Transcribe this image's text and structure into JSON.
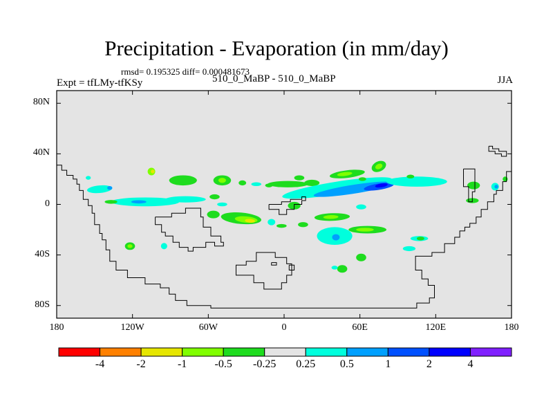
{
  "header": {
    "title": "Precipitation - Evaporation (in mm/day)",
    "stats": "rmsd= 0.195325 diff= 0.000481673",
    "expt_label": "Expt = tfLMy-tfKSy",
    "diff_label": "510_0_MaBP - 510_0_MaBP",
    "season": "JJA"
  },
  "chart_data": {
    "type": "heatmap",
    "title": "Precipitation - Evaporation (in mm/day)",
    "xlabel": "",
    "ylabel": "",
    "xlim": [
      -180,
      180
    ],
    "ylim": [
      -90,
      90
    ],
    "x_ticks": [
      {
        "value": -180,
        "label": "180"
      },
      {
        "value": -120,
        "label": "120W"
      },
      {
        "value": -60,
        "label": "60W"
      },
      {
        "value": 0,
        "label": "0"
      },
      {
        "value": 60,
        "label": "60E"
      },
      {
        "value": 120,
        "label": "120E"
      },
      {
        "value": 180,
        "label": "180"
      }
    ],
    "y_ticks": [
      {
        "value": 80,
        "label": "80N"
      },
      {
        "value": 40,
        "label": "40N"
      },
      {
        "value": 0,
        "label": "0"
      },
      {
        "value": -40,
        "label": "40S"
      },
      {
        "value": -80,
        "label": "80S"
      }
    ],
    "background_color": "#e4e4e4",
    "colorbar": {
      "colors": [
        "#ff0000",
        "#ff8000",
        "#e6e600",
        "#80ff00",
        "#1edc1e",
        "#e4e4e4",
        "#00ffdd",
        "#00a0ff",
        "#0050ff",
        "#0000ff",
        "#8020ff"
      ],
      "labels": [
        "-4",
        "-2",
        "-1",
        "-0.5",
        "-0.25",
        "0.25",
        "0.5",
        "1",
        "2",
        "4"
      ]
    },
    "anomaly_regions": [
      {
        "lon": -146,
        "lat": 12,
        "rlon": 10,
        "rlat": 3,
        "rot": -5,
        "level": "0.25"
      },
      {
        "lon": -138,
        "lat": 13,
        "rlon": 2,
        "rlat": 1.5,
        "rot": 0,
        "level": "0.5"
      },
      {
        "lon": -110,
        "lat": 2,
        "rlon": 27,
        "rlat": 3.5,
        "rot": 0,
        "level": "0.25"
      },
      {
        "lon": -115,
        "lat": 2,
        "rlon": 6,
        "rlat": 1.3,
        "rot": 0,
        "level": "0.5"
      },
      {
        "lon": -78,
        "lat": 4,
        "rlon": 16,
        "rlat": 2.5,
        "rot": 0,
        "level": "0.25"
      },
      {
        "lon": -155,
        "lat": 21,
        "rlon": 2,
        "rlat": 1.5,
        "rot": 0,
        "level": "0.25"
      },
      {
        "lon": -105,
        "lat": 26,
        "rlon": 3,
        "rlat": 3,
        "rot": 0,
        "level": "-0.5"
      },
      {
        "lon": -104,
        "lat": 26,
        "rlon": 1.5,
        "rlat": 1.5,
        "rot": 0,
        "level": "-1"
      },
      {
        "lon": -137,
        "lat": 2,
        "rlon": 5,
        "rlat": 1.5,
        "rot": 0,
        "level": "-0.25"
      },
      {
        "lon": -80,
        "lat": 19,
        "rlon": 11,
        "rlat": 4,
        "rot": 0,
        "level": "-0.25"
      },
      {
        "lon": -55,
        "lat": 6,
        "rlon": 4,
        "rlat": 2,
        "rot": 0,
        "level": "-0.25"
      },
      {
        "lon": -49,
        "lat": 19,
        "rlon": 7,
        "rlat": 4,
        "rot": 0,
        "level": "-0.25"
      },
      {
        "lon": -49,
        "lat": 19,
        "rlon": 3,
        "rlat": 2,
        "rot": 0,
        "level": "-0.5"
      },
      {
        "lon": -33,
        "lat": 17,
        "rlon": 3,
        "rlat": 2,
        "rot": 0,
        "level": "-0.25"
      },
      {
        "lon": -22,
        "lat": 16,
        "rlon": 4,
        "rlat": 1.5,
        "rot": 0,
        "level": "0.25"
      },
      {
        "lon": -12,
        "lat": 15,
        "rlon": 3,
        "rlat": 1.5,
        "rot": 0,
        "level": "-0.25"
      },
      {
        "lon": -34,
        "lat": -11,
        "rlon": 16,
        "rlat": 4.5,
        "rot": 5,
        "level": "-0.25"
      },
      {
        "lon": -30,
        "lat": -12,
        "rlon": 9,
        "rlat": 2.5,
        "rot": 5,
        "level": "-0.5"
      },
      {
        "lon": -27,
        "lat": -13,
        "rlon": 4,
        "rlat": 1.5,
        "rot": 5,
        "level": "-1"
      },
      {
        "lon": -56,
        "lat": -8,
        "rlon": 5,
        "rlat": 3,
        "rot": 0,
        "level": "-0.25"
      },
      {
        "lon": -49,
        "lat": 0,
        "rlon": 4,
        "rlat": 1.5,
        "rot": 0,
        "level": "0.25"
      },
      {
        "lon": -10,
        "lat": -14,
        "rlon": 3,
        "rlat": 2.5,
        "rot": 0,
        "level": "0.25"
      },
      {
        "lon": -2,
        "lat": -17,
        "rlon": 4,
        "rlat": 1.5,
        "rot": 0,
        "level": "-0.25"
      },
      {
        "lon": 8,
        "lat": -1,
        "rlon": 5,
        "rlat": 3,
        "rot": 0,
        "level": "-0.25"
      },
      {
        "lon": 3,
        "lat": 16,
        "rlon": 16,
        "rlat": 2.5,
        "rot": 0,
        "level": "-0.25"
      },
      {
        "lon": 22,
        "lat": 17,
        "rlon": 6,
        "rlat": 2.5,
        "rot": 0,
        "level": "-0.25"
      },
      {
        "lon": 42,
        "lat": 13,
        "rlon": 44,
        "rlat": 5,
        "rot": -9,
        "level": "0.25"
      },
      {
        "lon": 55,
        "lat": 12,
        "rlon": 32,
        "rlat": 3.5,
        "rot": -9,
        "level": "0.5"
      },
      {
        "lon": 75,
        "lat": 14,
        "rlon": 12,
        "rlat": 2.5,
        "rot": -9,
        "level": "1"
      },
      {
        "lon": 77,
        "lat": 15,
        "rlon": 5,
        "rlat": 1.5,
        "rot": -9,
        "level": "2"
      },
      {
        "lon": 50,
        "lat": 24,
        "rlon": 14,
        "rlat": 3,
        "rot": -7,
        "level": "-0.25"
      },
      {
        "lon": 48,
        "lat": 24,
        "rlon": 6,
        "rlat": 1.5,
        "rot": -7,
        "level": "-0.5"
      },
      {
        "lon": 75,
        "lat": 30,
        "rlon": 6,
        "rlat": 4,
        "rot": -25,
        "level": "-0.25"
      },
      {
        "lon": 75,
        "lat": 30,
        "rlon": 3,
        "rlat": 2,
        "rot": -25,
        "level": "-0.5"
      },
      {
        "lon": 62,
        "lat": 20,
        "rlon": 3,
        "rlat": 1.5,
        "rot": 0,
        "level": "-0.25"
      },
      {
        "lon": 12,
        "lat": 21,
        "rlon": 4,
        "rlat": 2,
        "rot": 0,
        "level": "-0.25"
      },
      {
        "lon": 38,
        "lat": -10,
        "rlon": 14,
        "rlat": 3,
        "rot": -2,
        "level": "-0.25"
      },
      {
        "lon": 37,
        "lat": -10,
        "rlon": 6,
        "rlat": 1.5,
        "rot": -2,
        "level": "-0.5"
      },
      {
        "lon": 15,
        "lat": -16,
        "rlon": 4,
        "rlat": 2,
        "rot": 0,
        "level": "-0.25"
      },
      {
        "lon": 66,
        "lat": -20,
        "rlon": 15,
        "rlat": 3,
        "rot": 0,
        "level": "-0.25"
      },
      {
        "lon": 64,
        "lat": -20,
        "rlon": 7,
        "rlat": 1.5,
        "rot": 0,
        "level": "-0.5"
      },
      {
        "lon": 40,
        "lat": -25,
        "rlon": 14,
        "rlat": 7,
        "rot": 0,
        "level": "0.25"
      },
      {
        "lon": 41,
        "lat": -26,
        "rlon": 3,
        "rlat": 2.5,
        "rot": 0,
        "level": "0.5"
      },
      {
        "lon": 61,
        "lat": -2,
        "rlon": 4,
        "rlat": 2,
        "rot": 0,
        "level": "0.25"
      },
      {
        "lon": 105,
        "lat": 18,
        "rlon": 24,
        "rlat": 4,
        "rot": 0,
        "level": "0.25"
      },
      {
        "lon": 99,
        "lat": -35,
        "rlon": 5,
        "rlat": 2,
        "rot": 0,
        "level": "0.25"
      },
      {
        "lon": 107,
        "lat": -27,
        "rlon": 7,
        "rlat": 2,
        "rot": 0,
        "level": "0.25"
      },
      {
        "lon": 108,
        "lat": -27,
        "rlon": 3,
        "rlat": 1.5,
        "rot": 0,
        "level": "-0.25"
      },
      {
        "lon": 100,
        "lat": 22,
        "rlon": 3,
        "rlat": 1.5,
        "rot": 0,
        "level": "-0.25"
      },
      {
        "lon": 61,
        "lat": -42,
        "rlon": 4,
        "rlat": 3,
        "rot": 0,
        "level": "-0.25"
      },
      {
        "lon": 46,
        "lat": -51,
        "rlon": 4,
        "rlat": 3,
        "rot": 0,
        "level": "-0.25"
      },
      {
        "lon": 40,
        "lat": -50,
        "rlon": 2.5,
        "rlat": 1.5,
        "rot": 0,
        "level": "0.25"
      },
      {
        "lon": -122,
        "lat": -33,
        "rlon": 4,
        "rlat": 3,
        "rot": 0,
        "level": "-0.25"
      },
      {
        "lon": -122,
        "lat": -33,
        "rlon": 2,
        "rlat": 1.5,
        "rot": 0,
        "level": "-0.5"
      },
      {
        "lon": -95,
        "lat": -33,
        "rlon": 2.5,
        "rlat": 2.5,
        "rot": 0,
        "level": "0.25"
      },
      {
        "lon": 150,
        "lat": 15,
        "rlon": 5,
        "rlat": 3,
        "rot": 0,
        "level": "-0.25"
      },
      {
        "lon": 149,
        "lat": 3,
        "rlon": 5,
        "rlat": 2,
        "rot": 0,
        "level": "-0.25"
      },
      {
        "lon": 167,
        "lat": 14,
        "rlon": 3,
        "rlat": 3,
        "rot": 0,
        "level": "0.25"
      },
      {
        "lon": 168,
        "lat": 14,
        "rlon": 1.5,
        "rlat": 1.5,
        "rot": 0,
        "level": "0.5"
      },
      {
        "lon": 175,
        "lat": 20,
        "rlon": 2,
        "rlat": 2,
        "rot": 0,
        "level": "-0.25"
      }
    ],
    "coastlines": [
      [
        [
          -180,
          31
        ],
        [
          -176,
          31
        ],
        [
          -176,
          27
        ],
        [
          -172,
          27
        ],
        [
          -172,
          23
        ],
        [
          -167,
          23
        ],
        [
          -167,
          20
        ],
        [
          -164,
          20
        ],
        [
          -164,
          16
        ],
        [
          -162,
          16
        ],
        [
          -162,
          11
        ],
        [
          -159,
          11
        ],
        [
          -159,
          4
        ],
        [
          -155,
          4
        ],
        [
          -155,
          -1
        ],
        [
          -152,
          -1
        ],
        [
          -152,
          -7
        ],
        [
          -150,
          -7
        ],
        [
          -150,
          -16
        ],
        [
          -146,
          -16
        ],
        [
          -146,
          -23
        ],
        [
          -144,
          -23
        ],
        [
          -144,
          -28
        ],
        [
          -141,
          -28
        ],
        [
          -141,
          -36
        ],
        [
          -138,
          -36
        ],
        [
          -138,
          -45
        ],
        [
          -133,
          -45
        ],
        [
          -133,
          -52
        ],
        [
          -124,
          -52
        ],
        [
          -124,
          -58
        ],
        [
          -110,
          -58
        ],
        [
          -110,
          -63
        ],
        [
          -98,
          -63
        ],
        [
          -98,
          -66
        ],
        [
          -91,
          -66
        ],
        [
          -91,
          -71
        ],
        [
          -86,
          -71
        ],
        [
          -86,
          -76
        ],
        [
          -77,
          -76
        ],
        [
          -77,
          -80
        ],
        [
          -58,
          -80
        ],
        [
          -58,
          -82
        ],
        [
          -50,
          -82
        ],
        [
          -50,
          -82
        ],
        [
          105,
          -82
        ],
        [
          105,
          -78
        ],
        [
          115,
          -78
        ],
        [
          115,
          -74
        ],
        [
          119,
          -74
        ],
        [
          119,
          -64
        ],
        [
          114,
          -64
        ],
        [
          114,
          -59
        ],
        [
          109,
          -59
        ],
        [
          109,
          -52
        ],
        [
          104,
          -52
        ],
        [
          104,
          -41
        ],
        [
          117,
          -41
        ],
        [
          117,
          -38
        ],
        [
          127,
          -38
        ],
        [
          127,
          -31
        ],
        [
          135,
          -31
        ],
        [
          135,
          -26
        ],
        [
          139,
          -26
        ],
        [
          139,
          -21
        ],
        [
          143,
          -21
        ],
        [
          143,
          -18
        ],
        [
          147,
          -18
        ],
        [
          147,
          -15
        ],
        [
          152,
          -15
        ],
        [
          152,
          -10
        ],
        [
          156,
          -10
        ],
        [
          156,
          -4
        ],
        [
          161,
          -4
        ],
        [
          161,
          2
        ],
        [
          166,
          2
        ],
        [
          166,
          8
        ],
        [
          168,
          8
        ],
        [
          168,
          11
        ],
        [
          173,
          11
        ],
        [
          173,
          18
        ],
        [
          176,
          18
        ],
        [
          176,
          26
        ],
        [
          180,
          26
        ]
      ],
      [
        [
          -102,
          -10
        ],
        [
          -102,
          -16
        ],
        [
          -97,
          -16
        ],
        [
          -97,
          -22
        ],
        [
          -94,
          -22
        ],
        [
          -94,
          -25
        ],
        [
          -88,
          -25
        ],
        [
          -88,
          -30
        ],
        [
          -83,
          -30
        ],
        [
          -83,
          -34
        ],
        [
          -76,
          -34
        ],
        [
          -76,
          -37
        ],
        [
          -72,
          -37
        ],
        [
          -72,
          -34
        ],
        [
          -62,
          -34
        ],
        [
          -62,
          -30
        ],
        [
          -55,
          -30
        ],
        [
          -55,
          -33
        ],
        [
          -48,
          -33
        ],
        [
          -48,
          -30
        ],
        [
          -50,
          -30
        ],
        [
          -50,
          -25
        ],
        [
          -58,
          -25
        ],
        [
          -58,
          -18
        ],
        [
          -64,
          -18
        ],
        [
          -64,
          -10
        ],
        [
          -66,
          -10
        ],
        [
          -66,
          -3
        ],
        [
          -78,
          -3
        ],
        [
          -78,
          -7
        ],
        [
          -89,
          -7
        ],
        [
          -89,
          -10
        ],
        [
          -102,
          -10
        ]
      ],
      [
        [
          -12,
          0
        ],
        [
          -12,
          -4
        ],
        [
          -4,
          -4
        ],
        [
          -4,
          -8
        ],
        [
          2,
          -8
        ],
        [
          2,
          -4
        ],
        [
          8,
          -4
        ],
        [
          8,
          0
        ],
        [
          14,
          0
        ],
        [
          14,
          3
        ],
        [
          17,
          3
        ],
        [
          17,
          6
        ],
        [
          14,
          6
        ],
        [
          14,
          4
        ],
        [
          5,
          4
        ],
        [
          5,
          2
        ],
        [
          -2,
          2
        ],
        [
          -2,
          0
        ],
        [
          -12,
          0
        ]
      ],
      [
        [
          -38,
          -50
        ],
        [
          -38,
          -56
        ],
        [
          -24,
          -56
        ],
        [
          -24,
          -62
        ],
        [
          -16,
          -62
        ],
        [
          -16,
          -67
        ],
        [
          -2,
          -67
        ],
        [
          -2,
          -62
        ],
        [
          2,
          -62
        ],
        [
          2,
          -56
        ],
        [
          6,
          -56
        ],
        [
          6,
          -47
        ],
        [
          2,
          -47
        ],
        [
          2,
          -42
        ],
        [
          -7,
          -42
        ],
        [
          -7,
          -38
        ],
        [
          -22,
          -38
        ],
        [
          -22,
          -45
        ],
        [
          -30,
          -45
        ],
        [
          -30,
          -48
        ],
        [
          -38,
          -48
        ],
        [
          -38,
          -50
        ]
      ],
      [
        [
          -10,
          -46
        ],
        [
          -6,
          -46
        ],
        [
          -6,
          -48
        ],
        [
          -10,
          -48
        ],
        [
          -10,
          -46
        ]
      ],
      [
        [
          4,
          -48
        ],
        [
          8,
          -48
        ],
        [
          8,
          -52
        ],
        [
          4,
          -52
        ],
        [
          4,
          -48
        ]
      ],
      [
        [
          142,
          28
        ],
        [
          142,
          14
        ],
        [
          146,
          14
        ],
        [
          146,
          2
        ],
        [
          149,
          2
        ],
        [
          149,
          10
        ],
        [
          151,
          10
        ],
        [
          151,
          28
        ],
        [
          142,
          28
        ]
      ],
      [
        [
          162,
          46
        ],
        [
          162,
          42
        ],
        [
          167,
          42
        ],
        [
          167,
          40
        ],
        [
          172,
          40
        ],
        [
          172,
          38
        ],
        [
          176,
          38
        ],
        [
          176,
          42
        ],
        [
          170,
          42
        ],
        [
          170,
          44
        ],
        [
          165,
          44
        ],
        [
          165,
          46
        ],
        [
          162,
          46
        ]
      ]
    ]
  }
}
